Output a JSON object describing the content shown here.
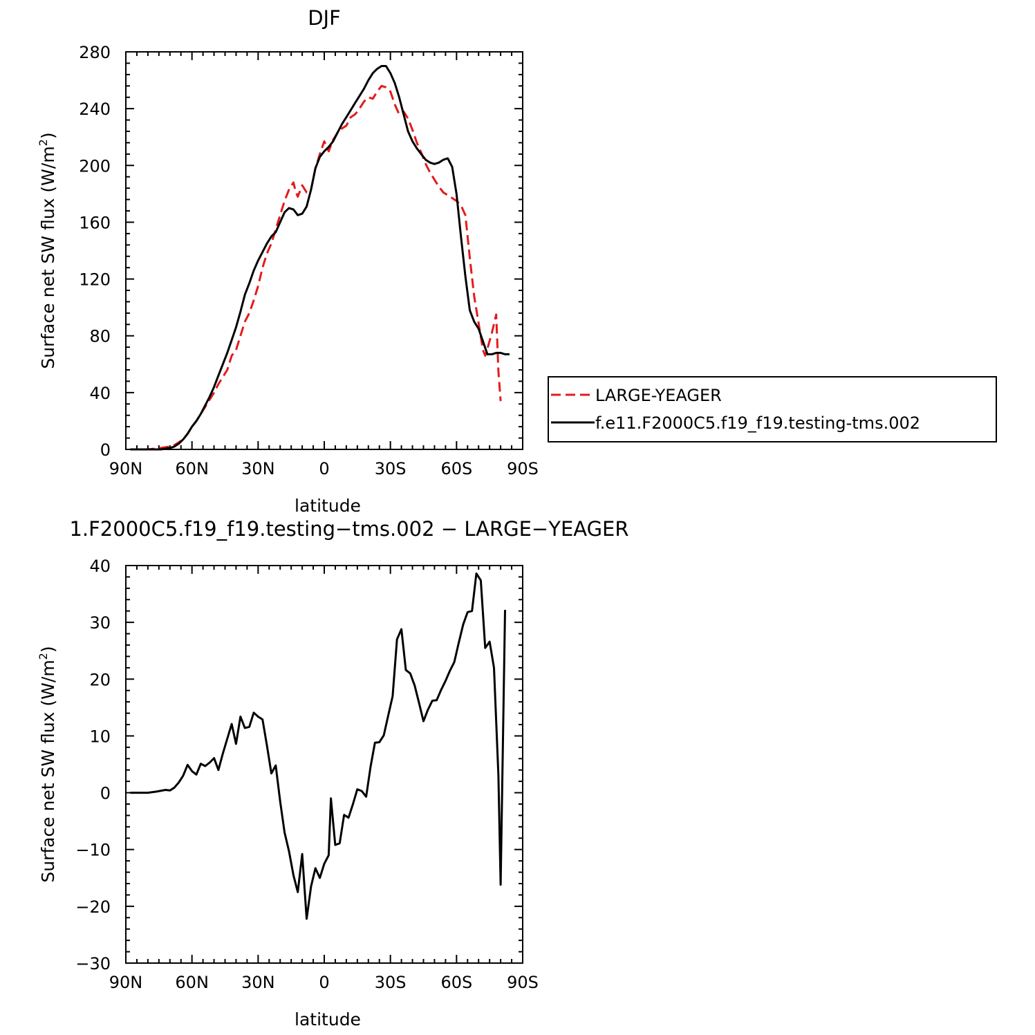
{
  "chart_data": [
    {
      "type": "line",
      "title": "DJF",
      "xlabel": "latitude",
      "ylabel": "Surface net SW flux (W/m",
      "ylabel_sup": "2",
      "ylabel_close": ")",
      "xlim": [
        90,
        -90
      ],
      "ylim": [
        0,
        280
      ],
      "x_ticks": [
        90,
        60,
        30,
        0,
        -30,
        -60,
        -90
      ],
      "x_tick_labels": [
        "90N",
        "60N",
        "30N",
        "0",
        "30S",
        "60S",
        "90S"
      ],
      "y_ticks": [
        0,
        40,
        80,
        120,
        160,
        200,
        240,
        280
      ],
      "y_tick_labels": [
        "0",
        "40",
        "80",
        "120",
        "160",
        "200",
        "240",
        "280"
      ],
      "grid": false,
      "legend_position": "right",
      "series": [
        {
          "name": "LARGE-YEAGER",
          "color": "#e41a1c",
          "dash": "dashed",
          "points": [
            [
              88,
              0
            ],
            [
              80,
              0
            ],
            [
              74,
              1
            ],
            [
              70,
              2
            ],
            [
              68,
              3
            ],
            [
              66,
              5
            ],
            [
              64,
              7
            ],
            [
              62,
              11
            ],
            [
              60,
              16
            ],
            [
              58,
              20
            ],
            [
              56,
              25
            ],
            [
              54,
              30
            ],
            [
              52,
              35
            ],
            [
              50,
              40
            ],
            [
              48,
              46
            ],
            [
              46,
              51
            ],
            [
              44,
              56
            ],
            [
              42,
              66
            ],
            [
              40,
              70
            ],
            [
              38,
              80
            ],
            [
              36,
              90
            ],
            [
              34,
              96
            ],
            [
              32,
              105
            ],
            [
              30,
              115
            ],
            [
              28,
              128
            ],
            [
              26,
              138
            ],
            [
              24,
              145
            ],
            [
              22,
              155
            ],
            [
              20,
              165
            ],
            [
              18,
              175
            ],
            [
              16,
              183
            ],
            [
              14,
              188
            ],
            [
              13,
              182
            ],
            [
              12,
              178
            ],
            [
              10,
              186
            ],
            [
              8,
              181
            ],
            [
              6,
              183
            ],
            [
              4,
              198
            ],
            [
              2,
              208
            ],
            [
              0,
              217
            ],
            [
              -2,
              210
            ],
            [
              -4,
              218
            ],
            [
              -6,
              223
            ],
            [
              -8,
              226
            ],
            [
              -10,
              228
            ],
            [
              -12,
              234
            ],
            [
              -14,
              236
            ],
            [
              -16,
              240
            ],
            [
              -18,
              245
            ],
            [
              -20,
              248
            ],
            [
              -22,
              247
            ],
            [
              -24,
              252
            ],
            [
              -26,
              256
            ],
            [
              -28,
              255
            ],
            [
              -30,
              252
            ],
            [
              -32,
              243
            ],
            [
              -34,
              236
            ],
            [
              -36,
              238
            ],
            [
              -38,
              233
            ],
            [
              -40,
              225
            ],
            [
              -42,
              216
            ],
            [
              -44,
              209
            ],
            [
              -46,
              201
            ],
            [
              -48,
              195
            ],
            [
              -50,
              190
            ],
            [
              -52,
              185
            ],
            [
              -54,
              181
            ],
            [
              -56,
              179
            ],
            [
              -58,
              177
            ],
            [
              -60,
              175
            ],
            [
              -62,
              172
            ],
            [
              -64,
              165
            ],
            [
              -66,
              135
            ],
            [
              -68,
              108
            ],
            [
              -70,
              89
            ],
            [
              -72,
              70
            ],
            [
              -73,
              66
            ],
            [
              -74,
              71
            ],
            [
              -76,
              82
            ],
            [
              -78,
              95
            ],
            [
              -79,
              55
            ],
            [
              -80,
              34
            ]
          ]
        },
        {
          "name": "f.e11.F2000C5.f19_f19.testing-tms.002",
          "color": "#000000",
          "dash": "solid",
          "points": [
            [
              88,
              0
            ],
            [
              80,
              0
            ],
            [
              74,
              0
            ],
            [
              70,
              1
            ],
            [
              68,
              2
            ],
            [
              66,
              4
            ],
            [
              64,
              7
            ],
            [
              62,
              11
            ],
            [
              60,
              16
            ],
            [
              58,
              20
            ],
            [
              56,
              25
            ],
            [
              54,
              31
            ],
            [
              52,
              37
            ],
            [
              50,
              44
            ],
            [
              48,
              52
            ],
            [
              46,
              60
            ],
            [
              44,
              68
            ],
            [
              42,
              77
            ],
            [
              40,
              86
            ],
            [
              38,
              97
            ],
            [
              36,
              109
            ],
            [
              34,
              117
            ],
            [
              32,
              126
            ],
            [
              30,
              133
            ],
            [
              28,
              139
            ],
            [
              26,
              145
            ],
            [
              24,
              150
            ],
            [
              22,
              153
            ],
            [
              20,
              160
            ],
            [
              18,
              167
            ],
            [
              16,
              170
            ],
            [
              14,
              169
            ],
            [
              12,
              165
            ],
            [
              10,
              166
            ],
            [
              8,
              171
            ],
            [
              6,
              183
            ],
            [
              4,
              198
            ],
            [
              2,
              206
            ],
            [
              0,
              210
            ],
            [
              -2,
              213
            ],
            [
              -4,
              217
            ],
            [
              -6,
              223
            ],
            [
              -8,
              229
            ],
            [
              -10,
              234
            ],
            [
              -12,
              239
            ],
            [
              -14,
              244
            ],
            [
              -16,
              249
            ],
            [
              -18,
              254
            ],
            [
              -20,
              260
            ],
            [
              -22,
              265
            ],
            [
              -24,
              268
            ],
            [
              -26,
              270
            ],
            [
              -28,
              270
            ],
            [
              -30,
              265
            ],
            [
              -32,
              258
            ],
            [
              -34,
              248
            ],
            [
              -36,
              236
            ],
            [
              -38,
              224
            ],
            [
              -40,
              217
            ],
            [
              -42,
              212
            ],
            [
              -44,
              208
            ],
            [
              -46,
              204
            ],
            [
              -48,
              202
            ],
            [
              -50,
              201
            ],
            [
              -52,
              202
            ],
            [
              -54,
              204
            ],
            [
              -56,
              205
            ],
            [
              -58,
              199
            ],
            [
              -60,
              180
            ],
            [
              -62,
              150
            ],
            [
              -64,
              122
            ],
            [
              -66,
              98
            ],
            [
              -68,
              90
            ],
            [
              -70,
              85
            ],
            [
              -72,
              76
            ],
            [
              -74,
              67
            ],
            [
              -76,
              67
            ],
            [
              -78,
              68
            ],
            [
              -80,
              68
            ],
            [
              -82,
              67
            ],
            [
              -84,
              67
            ]
          ]
        }
      ]
    },
    {
      "type": "line",
      "title": "1.F2000C5.f19_f19.testing−tms.002 − LARGE−YEAGER",
      "xlabel": "latitude",
      "ylabel": "Surface net SW flux (W/m",
      "ylabel_sup": "2",
      "ylabel_close": ")",
      "xlim": [
        90,
        -90
      ],
      "ylim": [
        -30,
        40
      ],
      "x_ticks": [
        90,
        60,
        30,
        0,
        -30,
        -60,
        -90
      ],
      "x_tick_labels": [
        "90N",
        "60N",
        "30N",
        "0",
        "30S",
        "60S",
        "90S"
      ],
      "y_ticks": [
        -30,
        -20,
        -10,
        0,
        10,
        20,
        30,
        40
      ],
      "y_tick_labels": [
        "−30",
        "−20",
        "−10",
        "0",
        "10",
        "20",
        "30",
        "40"
      ],
      "grid": false,
      "series": [
        {
          "color": "#000000",
          "dash": "solid",
          "points": [
            [
              88,
              0
            ],
            [
              84,
              0
            ],
            [
              80,
              0
            ],
            [
              76,
              0.2
            ],
            [
              72,
              0.5
            ],
            [
              70,
              0.4
            ],
            [
              68,
              0.9
            ],
            [
              66,
              1.8
            ],
            [
              64,
              3
            ],
            [
              62,
              4.9
            ],
            [
              60,
              3.8
            ],
            [
              58,
              3.2
            ],
            [
              56,
              5.1
            ],
            [
              54,
              4.7
            ],
            [
              52,
              5.3
            ],
            [
              50,
              6.1
            ],
            [
              48,
              4
            ],
            [
              46,
              6.9
            ],
            [
              44,
              9.5
            ],
            [
              42,
              12.1
            ],
            [
              40,
              8.6
            ],
            [
              38,
              13.4
            ],
            [
              36,
              11.4
            ],
            [
              34,
              11.6
            ],
            [
              32,
              14.1
            ],
            [
              30,
              13.4
            ],
            [
              28,
              12.9
            ],
            [
              26,
              8.3
            ],
            [
              24,
              3.4
            ],
            [
              22,
              4.8
            ],
            [
              20,
              -1.5
            ],
            [
              18,
              -7
            ],
            [
              16,
              -10.3
            ],
            [
              14,
              -14.5
            ],
            [
              12,
              -17.5
            ],
            [
              10,
              -10.8
            ],
            [
              8,
              -22.2
            ],
            [
              6,
              -16.5
            ],
            [
              4,
              -13.3
            ],
            [
              2,
              -15
            ],
            [
              0,
              -12.5
            ],
            [
              -2,
              -11
            ],
            [
              -3,
              -1
            ],
            [
              -5,
              -9.2
            ],
            [
              -7,
              -8.9
            ],
            [
              -9,
              -3.9
            ],
            [
              -11,
              -4.4
            ],
            [
              -13,
              -2
            ],
            [
              -15,
              0.6
            ],
            [
              -17,
              0.3
            ],
            [
              -19,
              -0.7
            ],
            [
              -21,
              4.6
            ],
            [
              -23,
              8.8
            ],
            [
              -25,
              8.9
            ],
            [
              -27,
              10.1
            ],
            [
              -29,
              13.6
            ],
            [
              -31,
              17
            ],
            [
              -33,
              27
            ],
            [
              -35,
              28.8
            ],
            [
              -37,
              21.6
            ],
            [
              -39,
              21
            ],
            [
              -41,
              18.9
            ],
            [
              -43,
              15.8
            ],
            [
              -45,
              12.6
            ],
            [
              -47,
              14.6
            ],
            [
              -49,
              16.2
            ],
            [
              -51,
              16.3
            ],
            [
              -53,
              18.1
            ],
            [
              -55,
              19.7
            ],
            [
              -57,
              21.5
            ],
            [
              -59,
              23
            ],
            [
              -61,
              26.4
            ],
            [
              -63,
              29.6
            ],
            [
              -65,
              31.8
            ],
            [
              -67,
              32
            ],
            [
              -69,
              38.6
            ],
            [
              -71,
              37.4
            ],
            [
              -73,
              25.5
            ],
            [
              -75,
              26.6
            ],
            [
              -77,
              22
            ],
            [
              -79,
              3
            ],
            [
              -80,
              -16.2
            ],
            [
              -82,
              32.2
            ]
          ]
        }
      ]
    }
  ]
}
